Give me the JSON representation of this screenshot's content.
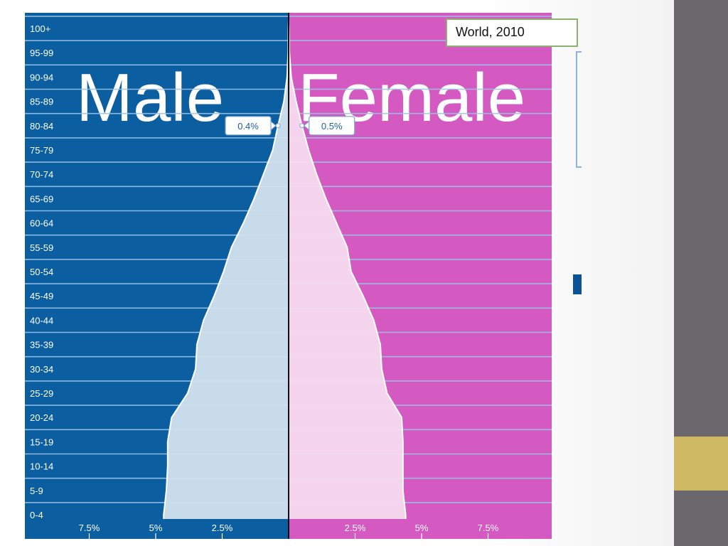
{
  "colors": {
    "male_bg": "#0b5ea0",
    "female_bg": "#d45ac2",
    "male_fill": "#d2e1ee",
    "female_fill": "#f6dcef",
    "grid": "#9cc2e6",
    "divider": "#111111",
    "side_bar": "#6b686d",
    "accent": "#cfb965"
  },
  "legend_label": "World, 2010",
  "chart_data": {
    "type": "area",
    "subtype": "population-pyramid",
    "categories": [
      "0-4",
      "5-9",
      "10-14",
      "15-19",
      "20-24",
      "25-29",
      "30-34",
      "35-39",
      "40-44",
      "45-49",
      "50-54",
      "55-59",
      "60-64",
      "65-69",
      "70-74",
      "75-79",
      "80-84",
      "85-89",
      "90-94",
      "95-99",
      "100+"
    ],
    "series": [
      {
        "name": "Male",
        "values": [
          4.7,
          4.6,
          4.55,
          4.55,
          4.4,
          3.8,
          3.5,
          3.45,
          3.2,
          2.8,
          2.45,
          2.15,
          1.7,
          1.3,
          0.95,
          0.6,
          0.4,
          0.18,
          0.06,
          0.02,
          0.01
        ]
      },
      {
        "name": "Female",
        "values": [
          4.4,
          4.3,
          4.3,
          4.3,
          4.25,
          3.7,
          3.5,
          3.45,
          3.2,
          2.8,
          2.35,
          2.2,
          1.8,
          1.4,
          1.05,
          0.75,
          0.5,
          0.28,
          0.1,
          0.03,
          0.01
        ]
      }
    ],
    "xlim": [
      -9.9,
      9.9
    ],
    "x_ticks": [
      -7.5,
      -5,
      -2.5,
      2.5,
      5,
      7.5
    ],
    "x_tick_labels": [
      "7.5%",
      "5%",
      "2.5%",
      "2.5%",
      "5%",
      "7.5%"
    ],
    "watermark_labels": {
      "male": "Male",
      "female": "Female"
    },
    "callouts": [
      {
        "side": "male",
        "category": "80-84",
        "text": "0.4%"
      },
      {
        "side": "female",
        "category": "80-84",
        "text": "0.5%"
      }
    ]
  }
}
